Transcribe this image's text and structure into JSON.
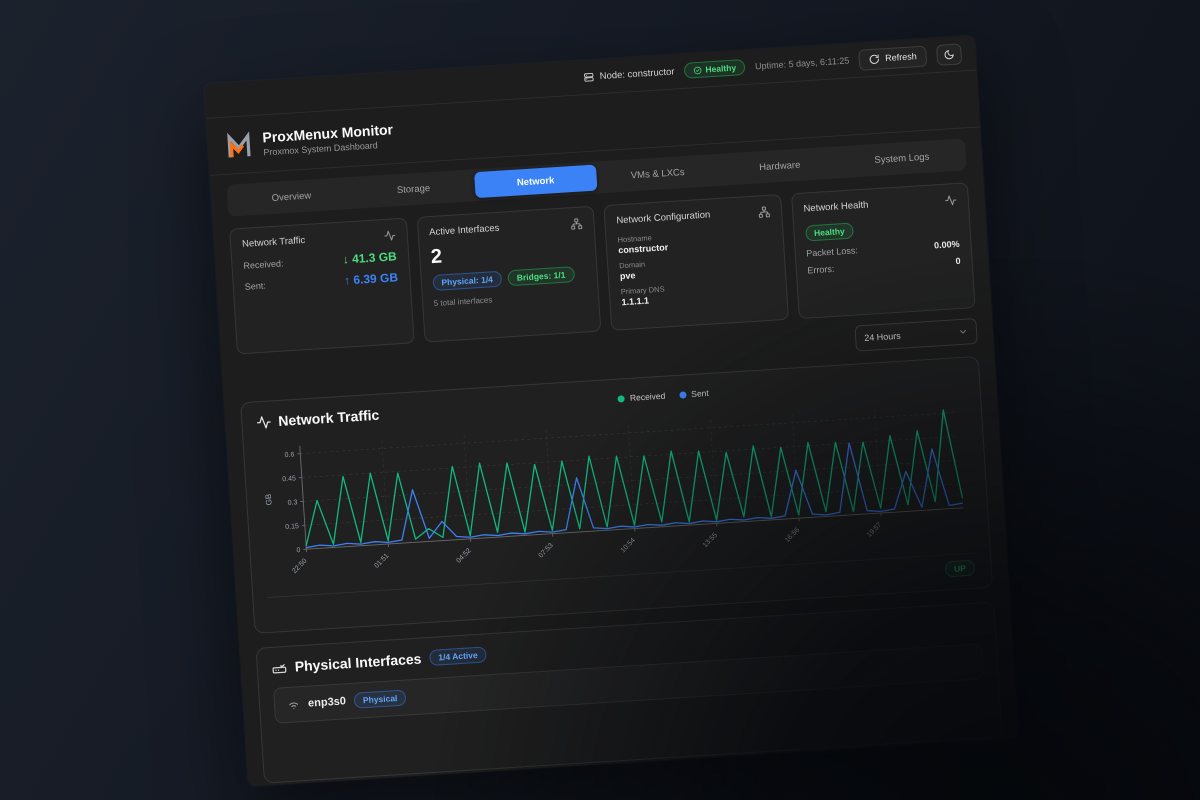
{
  "header": {
    "node_label": "Node: constructor",
    "health_badge": "Healthy",
    "uptime": "Uptime: 5 days, 6:11:25",
    "refresh_label": "Refresh"
  },
  "brand": {
    "title": "ProxMenux Monitor",
    "subtitle": "Proxmox System Dashboard",
    "logo_colors": {
      "gray": "#9aa0aa",
      "orange": "#f97316"
    }
  },
  "tabs": [
    {
      "label": "Overview",
      "active": false
    },
    {
      "label": "Storage",
      "active": false
    },
    {
      "label": "Network",
      "active": true
    },
    {
      "label": "VMs & LXCs",
      "active": false
    },
    {
      "label": "Hardware",
      "active": false
    },
    {
      "label": "System Logs",
      "active": false
    }
  ],
  "cards": {
    "traffic": {
      "title": "Network Traffic",
      "received_label": "Received:",
      "received_value": "↓ 41.3 GB",
      "sent_label": "Sent:",
      "sent_value": "↑ 6.39 GB"
    },
    "interfaces": {
      "title": "Active Interfaces",
      "count": "2",
      "physical_badge": "Physical: 1/4",
      "bridges_badge": "Bridges: 1/1",
      "total": "5 total interfaces"
    },
    "config": {
      "title": "Network Configuration",
      "hostname_label": "Hostname",
      "hostname": "constructor",
      "domain_label": "Domain",
      "domain": "pve",
      "dns_label": "Primary DNS",
      "dns": "1.1.1.1"
    },
    "health": {
      "title": "Network Health",
      "status": "Healthy",
      "packet_loss_label": "Packet Loss:",
      "packet_loss": "0.00%",
      "errors_label": "Errors:",
      "errors": "0"
    }
  },
  "time_range": {
    "selected": "24 Hours"
  },
  "chart": {
    "title": "Network Traffic",
    "status_badge": "UP"
  },
  "chart_data": {
    "type": "line",
    "title": "Network Traffic",
    "ylabel": "GB",
    "ylim": [
      0,
      0.65
    ],
    "yticks": [
      0,
      0.15,
      0.3,
      0.45,
      0.6
    ],
    "grid": true,
    "legend_position": "top-center",
    "x_tick_indices": [
      0,
      6,
      12,
      18,
      24,
      30,
      36,
      42
    ],
    "x_tick_labels": [
      "22:50",
      "01:51",
      "04:52",
      "07:53",
      "10:54",
      "13:55",
      "16:56",
      "19:57"
    ],
    "series": [
      {
        "name": "Received",
        "color": "#10b981",
        "values": [
          0.02,
          0.3,
          0.02,
          0.44,
          0.02,
          0.45,
          0.02,
          0.44,
          0.02,
          0.08,
          0.02,
          0.46,
          0.02,
          0.47,
          0.03,
          0.46,
          0.02,
          0.44,
          0.02,
          0.45,
          0.02,
          0.47,
          0.02,
          0.46,
          0.02,
          0.45,
          0.03,
          0.47,
          0.02,
          0.46,
          0.02,
          0.44,
          0.03,
          0.47,
          0.02,
          0.45,
          0.02,
          0.47,
          0.03,
          0.46,
          0.02,
          0.45,
          0.03,
          0.48,
          0.04,
          0.5,
          0.05,
          0.62,
          0.06
        ]
      },
      {
        "name": "Sent",
        "color": "#3b82f6",
        "values": [
          0.01,
          0.02,
          0.01,
          0.02,
          0.01,
          0.02,
          0.01,
          0.02,
          0.33,
          0.02,
          0.12,
          0.02,
          0.01,
          0.02,
          0.01,
          0.02,
          0.01,
          0.02,
          0.01,
          0.02,
          0.34,
          0.02,
          0.01,
          0.02,
          0.01,
          0.02,
          0.01,
          0.02,
          0.01,
          0.02,
          0.01,
          0.02,
          0.01,
          0.02,
          0.01,
          0.02,
          0.3,
          0.02,
          0.01,
          0.02,
          0.45,
          0.02,
          0.01,
          0.02,
          0.25,
          0.02,
          0.38,
          0.02,
          0.03
        ]
      }
    ]
  },
  "physical": {
    "title": "Physical Interfaces",
    "active_badge": "1/4 Active",
    "rows": [
      {
        "name": "enp3s0",
        "badge": "Physical"
      }
    ]
  }
}
